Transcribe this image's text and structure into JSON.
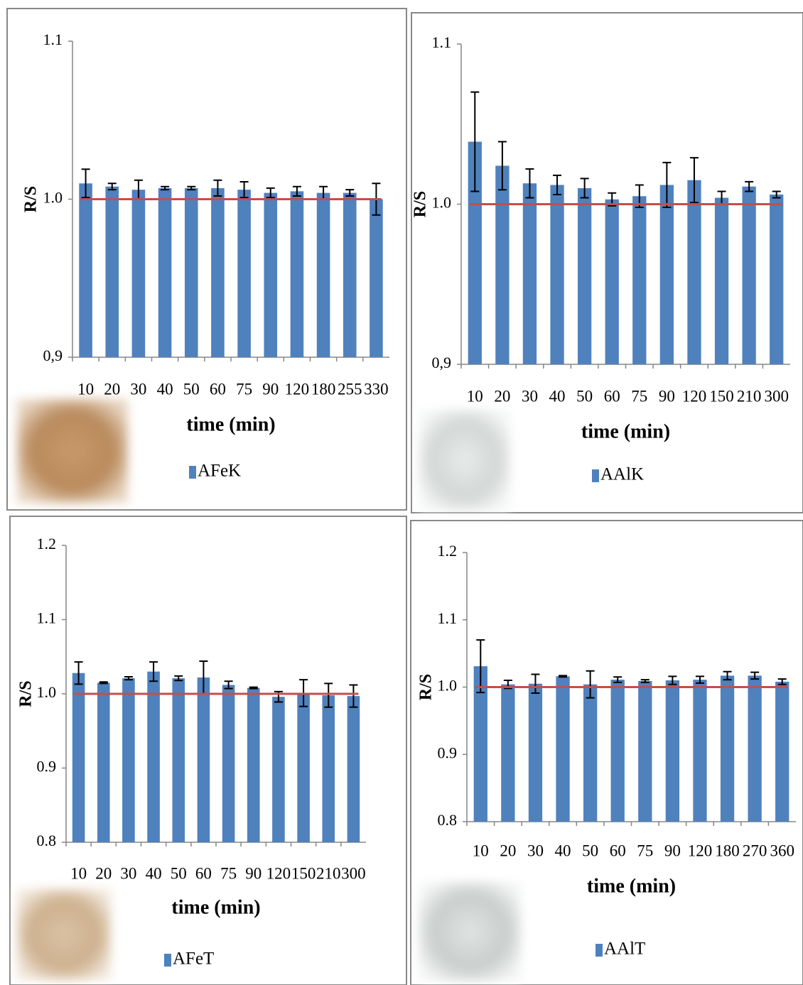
{
  "chart_data": [
    {
      "type": "bar",
      "x_label": "time (min)",
      "y_label": "R/S",
      "categories": [
        "10",
        "20",
        "30",
        "40",
        "50",
        "60",
        "75",
        "90",
        "120",
        "180",
        "255",
        "330"
      ],
      "series": [
        {
          "name": "AFeK",
          "color": "#4f81bd",
          "values": [
            1.01,
            1.008,
            1.006,
            1.007,
            1.007,
            1.007,
            1.006,
            1.004,
            1.005,
            1.004,
            1.004,
            1.0
          ],
          "errors": [
            0.009,
            0.002,
            0.006,
            0.001,
            0.001,
            0.005,
            0.005,
            0.003,
            0.003,
            0.004,
            0.002,
            0.01
          ]
        }
      ],
      "ylim": [
        0.9,
        1.1
      ],
      "yticks": [
        {
          "value": 0.9,
          "label": "0,9"
        },
        {
          "value": 1,
          "label": "1.0"
        },
        1.1
      ],
      "reference_line": {
        "value": 1,
        "color": "#c0504d"
      }
    },
    {
      "type": "bar",
      "x_label": "time (min)",
      "y_label": "R/S",
      "categories": [
        "10",
        "20",
        "30",
        "40",
        "50",
        "60",
        "75",
        "90",
        "120",
        "150",
        "210",
        "300"
      ],
      "series": [
        {
          "name": "AAlK",
          "color": "#4f81bd",
          "values": [
            1.039,
            1.024,
            1.013,
            1.012,
            1.01,
            1.003,
            1.005,
            1.012,
            1.015,
            1.004,
            1.011,
            1.006
          ],
          "errors": [
            0.031,
            0.015,
            0.009,
            0.006,
            0.006,
            0.004,
            0.007,
            0.014,
            0.014,
            0.004,
            0.003,
            0.002
          ]
        }
      ],
      "ylim": [
        0.9,
        1.1
      ],
      "yticks": [
        {
          "value": 0.9,
          "label": "0,9"
        },
        {
          "value": 1,
          "label": "1.0"
        },
        1.1
      ],
      "reference_line": {
        "value": 1,
        "color": "#c0504d"
      }
    },
    {
      "type": "bar",
      "x_label": "time (min)",
      "y_label": "R/S",
      "categories": [
        "10",
        "20",
        "30",
        "40",
        "50",
        "60",
        "75",
        "90",
        "120",
        "150",
        "210",
        "300"
      ],
      "series": [
        {
          "name": "AFeT",
          "color": "#4f81bd",
          "values": [
            1.028,
            1.015,
            1.021,
            1.03,
            1.021,
            1.022,
            1.012,
            1.008,
            0.996,
            1.001,
            0.998,
            0.997
          ],
          "errors": [
            0.015,
            0.001,
            0.002,
            0.013,
            0.003,
            0.022,
            0.005,
            0.001,
            0.007,
            0.018,
            0.016,
            0.015
          ]
        }
      ],
      "ylim": [
        0.8,
        1.2
      ],
      "yticks": [
        0.8,
        0.9,
        {
          "value": 1,
          "label": "1.0"
        },
        1.1,
        1.2
      ],
      "reference_line": {
        "value": 1,
        "color": "#c0504d"
      }
    },
    {
      "type": "bar",
      "x_label": "time (min)",
      "y_label": "R/S",
      "categories": [
        "10",
        "20",
        "30",
        "40",
        "50",
        "60",
        "75",
        "90",
        "120",
        "180",
        "270",
        "360"
      ],
      "series": [
        {
          "name": "AAlT",
          "color": "#4f81bd",
          "values": [
            1.031,
            1.004,
            1.005,
            1.016,
            1.004,
            1.011,
            1.009,
            1.01,
            1.011,
            1.017,
            1.017,
            1.008
          ],
          "errors": [
            0.039,
            0.006,
            0.014,
            0.001,
            0.02,
            0.004,
            0.002,
            0.006,
            0.005,
            0.006,
            0.005,
            0.004
          ]
        }
      ],
      "ylim": [
        0.8,
        1.2
      ],
      "yticks": [
        0.8,
        0.9,
        {
          "value": 1,
          "label": "1.0"
        },
        1.1,
        1.2
      ],
      "reference_line": {
        "value": 1,
        "color": "#c0504d"
      }
    }
  ]
}
